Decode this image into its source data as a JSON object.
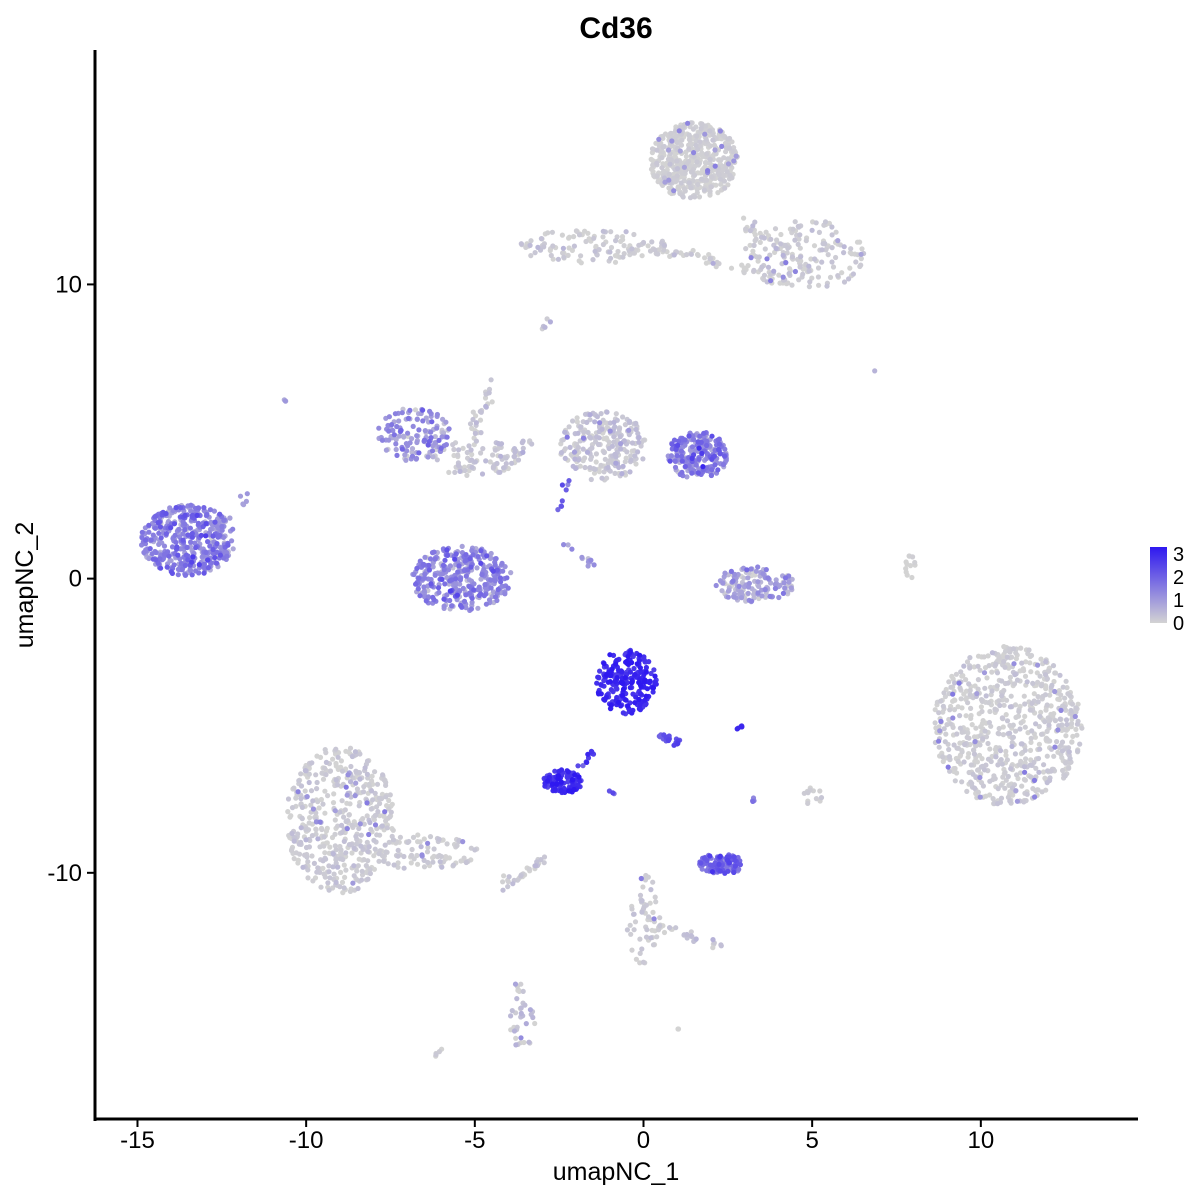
{
  "chart_data": {
    "type": "scatter",
    "title": "Cd36",
    "xlabel": "umapNC_1",
    "ylabel": "umapNC_2",
    "xlim": [
      -16.2,
      14.6
    ],
    "ylim": [
      -18.3,
      17.9
    ],
    "x_ticks": [
      {
        "value": -15,
        "label": "-15"
      },
      {
        "value": -10,
        "label": "-10"
      },
      {
        "value": -5,
        "label": "-5"
      },
      {
        "value": 0,
        "label": "0"
      },
      {
        "value": 5,
        "label": "5"
      },
      {
        "value": 10,
        "label": "10"
      }
    ],
    "y_ticks": [
      {
        "value": -10,
        "label": "-10"
      },
      {
        "value": 0,
        "label": "0"
      },
      {
        "value": 10,
        "label": "10"
      }
    ],
    "grid": false,
    "legend": {
      "placement": "right",
      "type": "colorbar",
      "min": 0,
      "max": 3.3,
      "entries": [
        {
          "value": 3,
          "label": "3"
        },
        {
          "value": 2,
          "label": "2"
        },
        {
          "value": 1,
          "label": "1"
        },
        {
          "value": 0,
          "label": "0"
        }
      ]
    },
    "color_low": "#d3d3d3",
    "color_high": "#2e18f0",
    "clusters": [
      {
        "cx": 1.5,
        "cy": 14.2,
        "rx": 1.3,
        "ry": 1.3,
        "n": 520,
        "expr": 0.05,
        "spread": 0.15
      },
      {
        "cx": 4.8,
        "cy": 11.0,
        "rx": 1.8,
        "ry": 1.2,
        "n": 160,
        "expr": 0.1,
        "spread": 0.25
      },
      {
        "cx": -1.5,
        "cy": 11.3,
        "rx": 2.2,
        "ry": 0.6,
        "n": 110,
        "expr": 0.1,
        "spread": 0.3
      },
      {
        "cx": 10.8,
        "cy": -5.0,
        "rx": 2.2,
        "ry": 2.7,
        "n": 700,
        "expr": 0.08,
        "spread": 0.2
      },
      {
        "cx": -9.0,
        "cy": -8.2,
        "rx": 1.6,
        "ry": 2.5,
        "n": 480,
        "expr": 0.1,
        "spread": 0.25
      },
      {
        "cx": -6.5,
        "cy": -9.3,
        "rx": 1.6,
        "ry": 0.6,
        "n": 90,
        "expr": 0.1,
        "spread": 0.25
      },
      {
        "cx": -13.5,
        "cy": 1.3,
        "rx": 1.4,
        "ry": 1.2,
        "n": 420,
        "expr": 1.35,
        "spread": 0.45
      },
      {
        "cx": -5.4,
        "cy": 0.0,
        "rx": 1.5,
        "ry": 1.1,
        "n": 360,
        "expr": 1.25,
        "spread": 0.45
      },
      {
        "cx": -6.8,
        "cy": 4.9,
        "rx": 1.1,
        "ry": 0.9,
        "n": 130,
        "expr": 1.1,
        "spread": 0.5
      },
      {
        "cx": -5.0,
        "cy": 4.1,
        "rx": 1.4,
        "ry": 0.6,
        "n": 70,
        "expr": 0.2,
        "spread": 0.3
      },
      {
        "cx": -1.2,
        "cy": 4.5,
        "rx": 1.3,
        "ry": 1.2,
        "n": 240,
        "expr": 0.2,
        "spread": 0.3
      },
      {
        "cx": 1.6,
        "cy": 4.2,
        "rx": 0.9,
        "ry": 0.8,
        "n": 220,
        "expr": 1.4,
        "spread": 0.5
      },
      {
        "cx": 3.3,
        "cy": -0.2,
        "rx": 1.2,
        "ry": 0.6,
        "n": 140,
        "expr": 0.7,
        "spread": 0.5
      },
      {
        "cx": -0.5,
        "cy": -3.5,
        "rx": 0.9,
        "ry": 1.1,
        "n": 230,
        "expr": 2.95,
        "spread": 0.3
      },
      {
        "cx": -2.4,
        "cy": -6.9,
        "rx": 0.6,
        "ry": 0.4,
        "n": 110,
        "expr": 2.8,
        "spread": 0.3
      },
      {
        "cx": 2.3,
        "cy": -9.7,
        "rx": 0.7,
        "ry": 0.35,
        "n": 110,
        "expr": 1.9,
        "spread": 0.4
      },
      {
        "cx": 0.0,
        "cy": -11.6,
        "rx": 0.5,
        "ry": 1.6,
        "n": 60,
        "expr": 0.1,
        "spread": 0.2
      },
      {
        "cx": -3.6,
        "cy": -15.2,
        "rx": 0.4,
        "ry": 0.8,
        "n": 30,
        "expr": 0.3,
        "spread": 0.4
      },
      {
        "cx": 7.9,
        "cy": 0.4,
        "rx": 0.15,
        "ry": 0.6,
        "n": 12,
        "expr": 0.0,
        "spread": 0.1
      },
      {
        "cx": 5.0,
        "cy": -7.4,
        "rx": 0.3,
        "ry": 0.3,
        "n": 12,
        "expr": 0.1,
        "spread": 0.2
      }
    ],
    "trails": [
      {
        "from": [
          -12.8,
          1.6
        ],
        "to": [
          -11.6,
          2.8
        ],
        "n": 20,
        "expr": 0.9,
        "width": 0.25
      },
      {
        "from": [
          -5.3,
          4.0
        ],
        "to": [
          -4.4,
          6.8
        ],
        "n": 35,
        "expr": 0.2,
        "width": 0.3
      },
      {
        "from": [
          -4.6,
          3.6
        ],
        "to": [
          -3.2,
          4.8
        ],
        "n": 20,
        "expr": 0.2,
        "width": 0.25
      },
      {
        "from": [
          -2.5,
          2.4
        ],
        "to": [
          -2.2,
          3.4
        ],
        "n": 8,
        "expr": 2.0,
        "width": 0.15
      },
      {
        "from": [
          -2.6,
          1.5
        ],
        "to": [
          -1.5,
          0.5
        ],
        "n": 12,
        "expr": 1.0,
        "width": 0.2
      },
      {
        "from": [
          0.0,
          11.4
        ],
        "to": [
          3.9,
          10.3
        ],
        "n": 50,
        "expr": 0.1,
        "width": 0.3
      },
      {
        "from": [
          3.0,
          12.0
        ],
        "to": [
          5.0,
          10.5
        ],
        "n": 40,
        "expr": 0.1,
        "width": 0.35
      },
      {
        "from": [
          0.5,
          -5.3
        ],
        "to": [
          1.0,
          -5.6
        ],
        "n": 20,
        "expr": 2.3,
        "width": 0.2
      },
      {
        "from": [
          -2.0,
          -6.6
        ],
        "to": [
          -1.5,
          -5.8
        ],
        "n": 10,
        "expr": 2.6,
        "width": 0.15
      },
      {
        "from": [
          -3.0,
          -9.6
        ],
        "to": [
          -4.3,
          -10.5
        ],
        "n": 30,
        "expr": 0.1,
        "width": 0.25
      },
      {
        "from": [
          0.5,
          -11.8
        ],
        "to": [
          2.5,
          -12.6
        ],
        "n": 25,
        "expr": 0.2,
        "width": 0.25
      },
      {
        "from": [
          -3.8,
          -13.5
        ],
        "to": [
          -3.6,
          -14.5
        ],
        "n": 8,
        "expr": 0.1,
        "width": 0.2
      },
      {
        "from": [
          -6.2,
          -16.3
        ],
        "to": [
          -6.0,
          -16.0
        ],
        "n": 5,
        "expr": 0.1,
        "width": 0.1
      },
      {
        "from": [
          -3.0,
          8.5
        ],
        "to": [
          -2.8,
          8.8
        ],
        "n": 5,
        "expr": 0.3,
        "width": 0.1
      },
      {
        "from": [
          2.8,
          -5.1
        ],
        "to": [
          2.9,
          -5.0
        ],
        "n": 6,
        "expr": 3.0,
        "width": 0.08
      },
      {
        "from": [
          3.2,
          -7.6
        ],
        "to": [
          3.3,
          -7.5
        ],
        "n": 5,
        "expr": 1.4,
        "width": 0.1
      },
      {
        "from": [
          -10.7,
          6.1
        ],
        "to": [
          -10.6,
          6.0
        ],
        "n": 3,
        "expr": 1.0,
        "width": 0.06
      },
      {
        "from": [
          6.8,
          7.0
        ],
        "to": [
          6.9,
          7.1
        ],
        "n": 1,
        "expr": 0.0,
        "width": 0.02
      },
      {
        "from": [
          1.0,
          -15.3
        ],
        "to": [
          1.1,
          -15.3
        ],
        "n": 2,
        "expr": 0.0,
        "width": 0.05
      },
      {
        "from": [
          -1.0,
          -7.2
        ],
        "to": [
          -0.9,
          -7.3
        ],
        "n": 3,
        "expr": 2.5,
        "width": 0.05
      }
    ]
  }
}
